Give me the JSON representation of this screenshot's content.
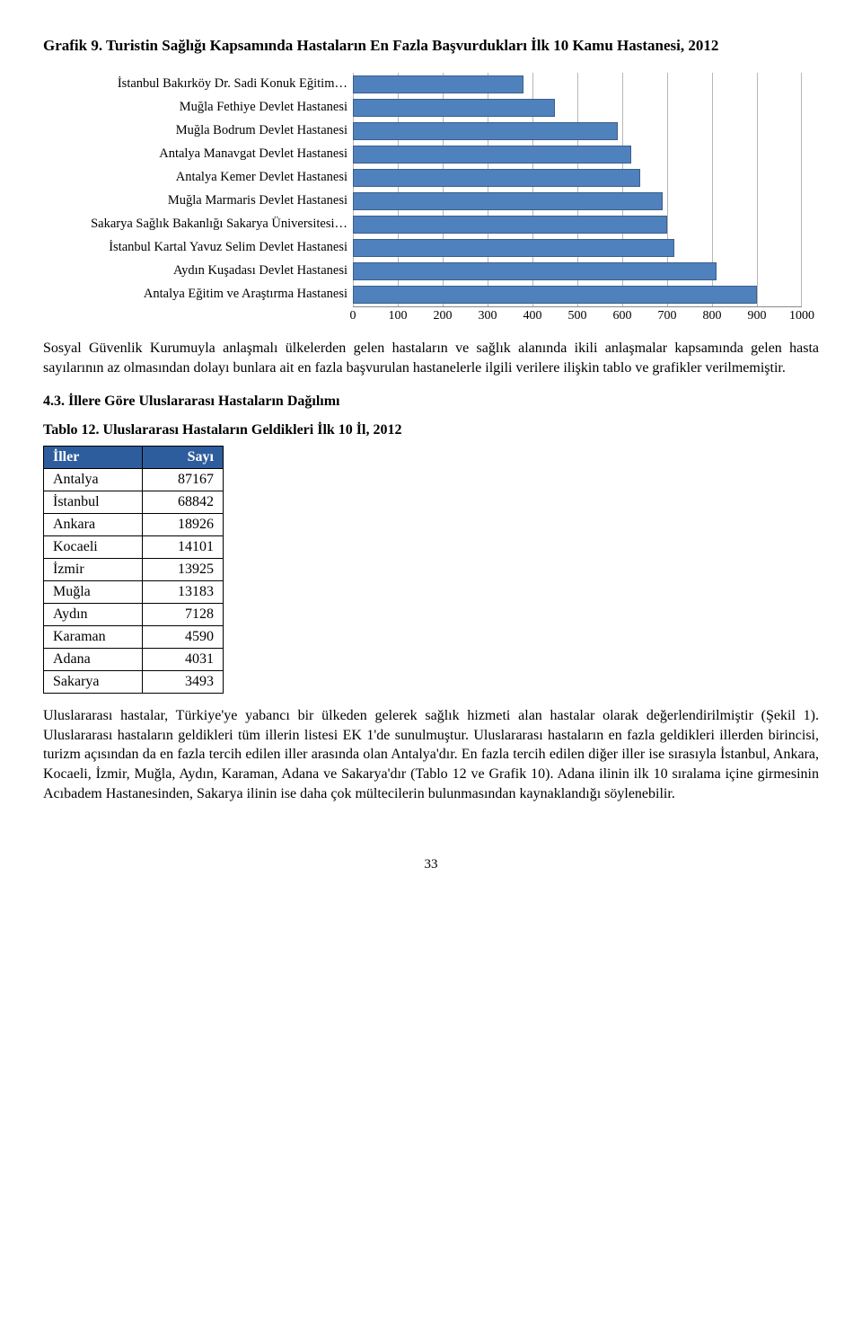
{
  "chart": {
    "title": "Grafik 9. Turistin Sağlığı Kapsamında Hastaların En Fazla Başvurdukları İlk 10 Kamu Hastanesi, 2012",
    "xmax": 1000,
    "tick_step": 100,
    "ticks": [
      "0",
      "100",
      "200",
      "300",
      "400",
      "500",
      "600",
      "700",
      "800",
      "900",
      "1000"
    ],
    "bar_color": "#4f81bd",
    "grid_color": "#b7b7b7",
    "bars": [
      {
        "label": "İstanbul Bakırköy Dr. Sadi Konuk Eğitim…",
        "value": 380
      },
      {
        "label": "Muğla Fethiye Devlet Hastanesi",
        "value": 450
      },
      {
        "label": "Muğla Bodrum Devlet Hastanesi",
        "value": 590
      },
      {
        "label": "Antalya Manavgat Devlet Hastanesi",
        "value": 620
      },
      {
        "label": "Antalya Kemer Devlet Hastanesi",
        "value": 640
      },
      {
        "label": "Muğla Marmaris Devlet Hastanesi",
        "value": 690
      },
      {
        "label": "Sakarya Sağlık Bakanlığı Sakarya Üniversitesi…",
        "value": 700
      },
      {
        "label": "İstanbul Kartal Yavuz Selim Devlet Hastanesi",
        "value": 715
      },
      {
        "label": "Aydın Kuşadası Devlet Hastanesi",
        "value": 810
      },
      {
        "label": "Antalya Eğitim ve Araştırma Hastanesi",
        "value": 900
      }
    ]
  },
  "paragraph1": "Sosyal Güvenlik Kurumuyla anlaşmalı ülkelerden gelen hastaların ve sağlık alanında ikili anlaşmalar kapsamında gelen hasta sayılarının az olmasından dolayı bunlara ait en fazla başvurulan hastanelerle ilgili verilere ilişkin tablo ve grafikler verilmemiştir.",
  "section_heading": "4.3. İllere Göre Uluslararası Hastaların Dağılımı",
  "table": {
    "caption": "Tablo 12. Uluslararası Hastaların Geldikleri İlk 10 İl, 2012",
    "header_bg": "#2e5d9e",
    "columns": [
      "İller",
      "Sayı"
    ],
    "rows": [
      [
        "Antalya",
        "87167"
      ],
      [
        "İstanbul",
        "68842"
      ],
      [
        "Ankara",
        "18926"
      ],
      [
        "Kocaeli",
        "14101"
      ],
      [
        "İzmir",
        "13925"
      ],
      [
        "Muğla",
        "13183"
      ],
      [
        "Aydın",
        "7128"
      ],
      [
        "Karaman",
        "4590"
      ],
      [
        "Adana",
        "4031"
      ],
      [
        "Sakarya",
        "3493"
      ]
    ]
  },
  "paragraph2": "Uluslararası hastalar, Türkiye'ye yabancı bir ülkeden gelerek sağlık hizmeti alan hastalar olarak değerlendirilmiştir (Şekil 1). Uluslararası hastaların geldikleri tüm illerin listesi EK 1'de sunulmuştur. Uluslararası hastaların en fazla geldikleri illerden birincisi, turizm açısından da en fazla tercih edilen iller arasında olan Antalya'dır. En fazla tercih edilen diğer iller ise sırasıyla İstanbul, Ankara, Kocaeli, İzmir, Muğla, Aydın, Karaman, Adana ve Sakarya'dır (Tablo 12 ve Grafik 10). Adana ilinin ilk 10 sıralama içine girmesinin Acıbadem Hastanesinden, Sakarya ilinin ise daha çok mültecilerin bulunmasından kaynaklandığı söylenebilir.",
  "page_number": "33"
}
